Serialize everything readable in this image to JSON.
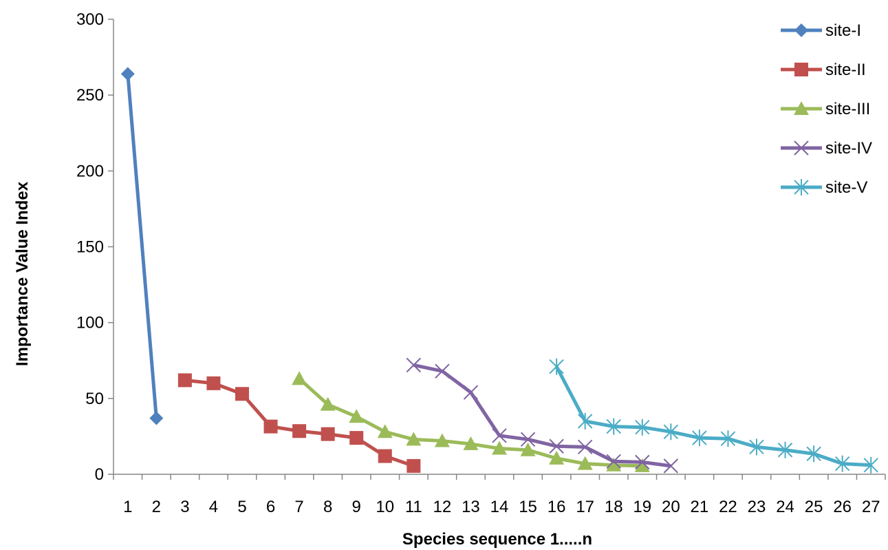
{
  "chart_data": {
    "type": "line",
    "title": "",
    "xlabel": "Species sequence 1.....n",
    "ylabel": "Importance  Value Index",
    "ylim": [
      0,
      300
    ],
    "yticks": [
      "0",
      "50",
      "100",
      "150",
      "200",
      "250",
      "300"
    ],
    "categories": [
      "1",
      "2",
      "3",
      "4",
      "5",
      "6",
      "7",
      "8",
      "9",
      "10",
      "11",
      "12",
      "13",
      "14",
      "15",
      "16",
      "17",
      "18",
      "19",
      "20",
      "21",
      "22",
      "23",
      "24",
      "25",
      "26",
      "27"
    ],
    "grid": false,
    "legend_position": "right",
    "series": [
      {
        "name": "site-I",
        "color": "#4F81BD",
        "marker": "diamond",
        "x": [
          1,
          2
        ],
        "values": [
          264,
          37
        ]
      },
      {
        "name": "site-II",
        "color": "#C0504D",
        "marker": "square",
        "x": [
          3,
          4,
          5,
          6,
          7,
          8,
          9,
          10,
          11
        ],
        "values": [
          62,
          60,
          53,
          31.5,
          28.5,
          26.5,
          24,
          12,
          5.5
        ]
      },
      {
        "name": "site-III",
        "color": "#9BBB59",
        "marker": "triangle",
        "x": [
          7,
          8,
          9,
          10,
          11,
          12,
          13,
          14,
          15,
          16,
          17,
          18,
          19
        ],
        "values": [
          63,
          46,
          38,
          28,
          23,
          22,
          20,
          17,
          16,
          10.5,
          7,
          6,
          5.5
        ]
      },
      {
        "name": "site-IV",
        "color": "#8064A2",
        "marker": "x",
        "x": [
          11,
          12,
          13,
          14,
          15,
          16,
          17,
          18,
          19,
          20
        ],
        "values": [
          72,
          68,
          54,
          25.5,
          23,
          18.5,
          18,
          8.5,
          8,
          5.5
        ]
      },
      {
        "name": "site-V",
        "color": "#4BACC6",
        "marker": "star",
        "x": [
          16,
          17,
          18,
          19,
          20,
          21,
          22,
          23,
          24,
          25,
          26,
          27
        ],
        "values": [
          71,
          35,
          31.5,
          31,
          28,
          24,
          23.5,
          18,
          16,
          13.5,
          7,
          6
        ]
      }
    ]
  }
}
